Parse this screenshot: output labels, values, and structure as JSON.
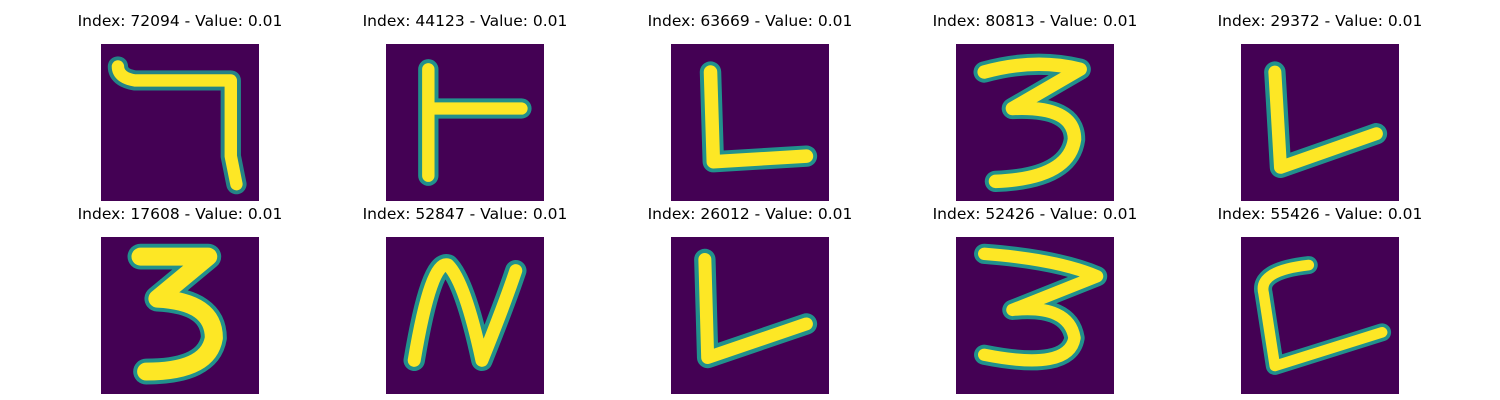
{
  "colors": {
    "background": "#440154",
    "mid": "#21918c",
    "high": "#fde725"
  },
  "panels": [
    {
      "title": "Index: 72094 - Value: 0.01",
      "glyph": "seven"
    },
    {
      "title": "Index: 44123 - Value: 0.01",
      "glyph": "t-right"
    },
    {
      "title": "Index: 63669 - Value: 0.01",
      "glyph": "L"
    },
    {
      "title": "Index: 80813 - Value: 0.01",
      "glyph": "3"
    },
    {
      "title": "Index: 29372 - Value: 0.01",
      "glyph": "L"
    },
    {
      "title": "Index: 17608 - Value: 0.01",
      "glyph": "3"
    },
    {
      "title": "Index: 52847 - Value: 0.01",
      "glyph": "N"
    },
    {
      "title": "Index: 26012 - Value: 0.01",
      "glyph": "L"
    },
    {
      "title": "Index: 52426 - Value: 0.01",
      "glyph": "3"
    },
    {
      "title": "Index: 55426 - Value: 0.01",
      "glyph": "C-L"
    }
  ]
}
